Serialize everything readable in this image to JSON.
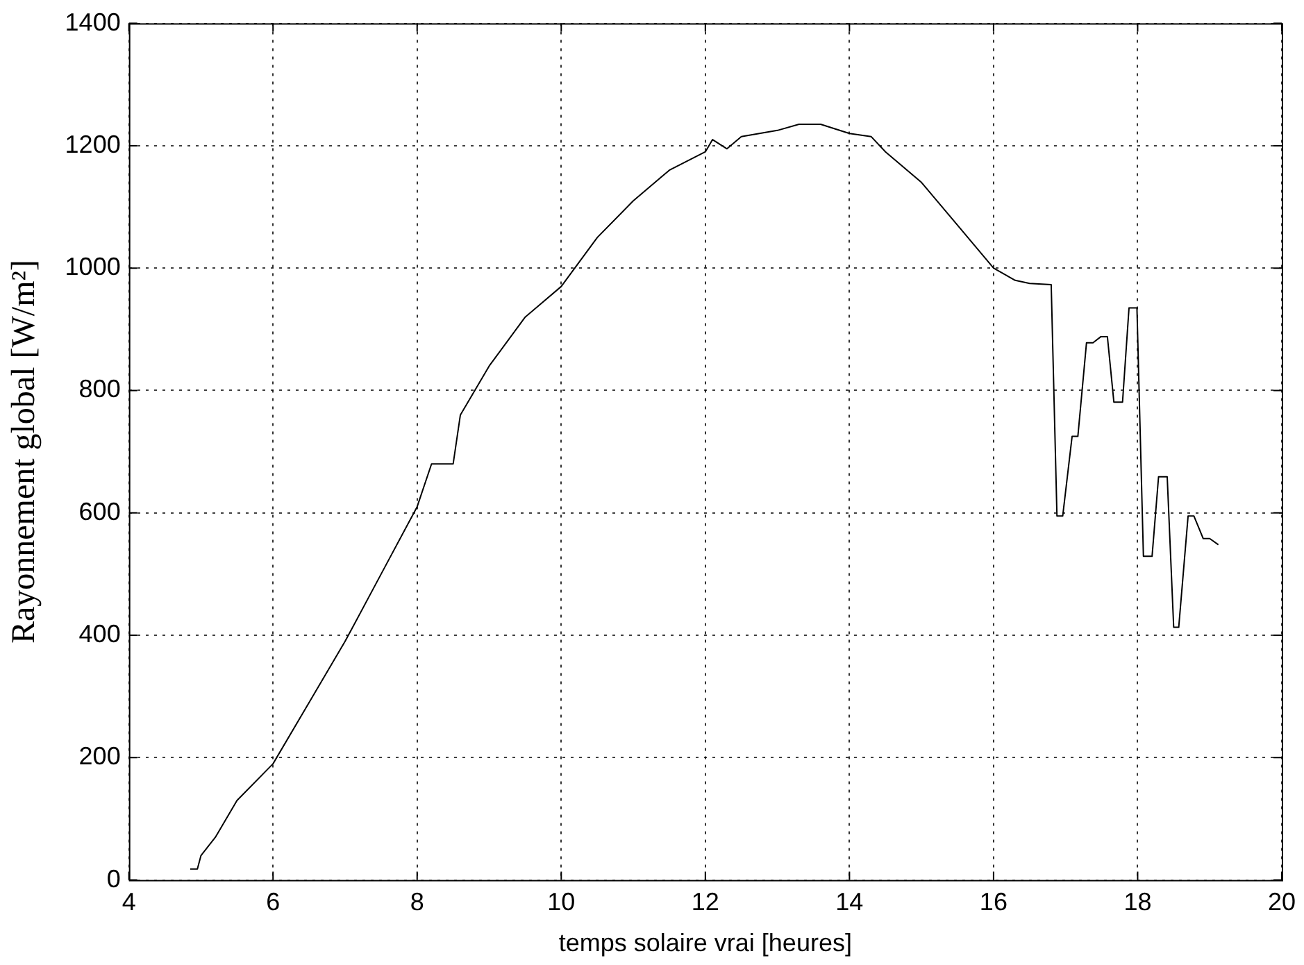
{
  "chart_data": {
    "type": "line",
    "xlabel": "temps solaire vrai [heures]",
    "ylabel": "Rayonnement global [W/m²]",
    "x": [
      4.85,
      4.95,
      5.0,
      5.2,
      5.5,
      6.0,
      6.5,
      7.0,
      7.5,
      8.0,
      8.2,
      8.5,
      8.6,
      9.0,
      9.5,
      10.0,
      10.5,
      11.0,
      11.5,
      12.0,
      12.1,
      12.3,
      12.5,
      13.0,
      13.3,
      13.6,
      14.0,
      14.3,
      14.5,
      15.0,
      15.5,
      16.0,
      16.3,
      16.5,
      16.8,
      16.88,
      16.96,
      17.09,
      17.17,
      17.29,
      17.38,
      17.49,
      17.58,
      17.67,
      17.79,
      17.88,
      17.99,
      18.08,
      18.2,
      18.29,
      18.41,
      18.5,
      18.57,
      18.7,
      18.78,
      18.91,
      19.0,
      19.12
    ],
    "series": [
      {
        "color": "#000000",
        "values": [
          18,
          18,
          40,
          70,
          130,
          190,
          290,
          390,
          500,
          610,
          680,
          680,
          760,
          840,
          920,
          970,
          1050,
          1110,
          1160,
          1190,
          1210,
          1195,
          1215,
          1225,
          1235,
          1235,
          1220,
          1215,
          1190,
          1140,
          1070,
          1000,
          980,
          975,
          973,
          595,
          595,
          725,
          725,
          878,
          878,
          888,
          888,
          781,
          781,
          935,
          935,
          529,
          529,
          659,
          659,
          413,
          413,
          595,
          595,
          558,
          558,
          548
        ]
      }
    ],
    "xlim": [
      4,
      20
    ],
    "xticks": [
      4,
      6,
      8,
      10,
      12,
      14,
      16,
      18,
      20
    ],
    "ylim": [
      0,
      1400
    ],
    "yticks": [
      0,
      200,
      400,
      600,
      800,
      1000,
      1200,
      1400
    ],
    "grid": true,
    "legend": false,
    "marker": "none",
    "line_style": "solid"
  }
}
